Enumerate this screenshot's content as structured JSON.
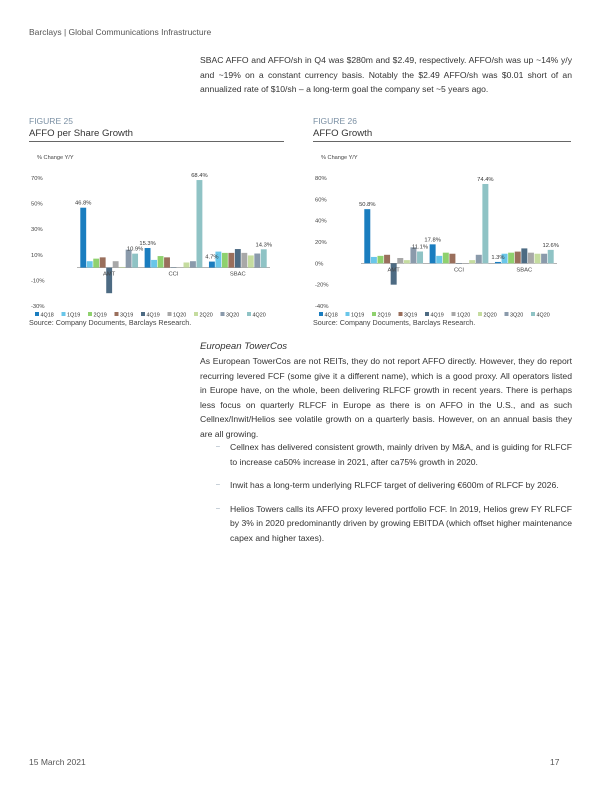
{
  "header": {
    "text": "Barclays | Global Communications Infrastructure"
  },
  "intro": {
    "text": "SBAC AFFO and AFFO/sh in Q4 was $280m and $2.49, respectively. AFFO/sh was up ~14% y/y and ~19% on a constant currency basis. Notably the $2.49 AFFO/sh was $0.01 short of an annualized rate of $10/sh – a long-term goal the company set ~5 years ago."
  },
  "figure25": {
    "number": "FIGURE 25",
    "title": "AFFO per Share Growth",
    "source": "Source: Company Documents, Barclays Research."
  },
  "figure26": {
    "number": "FIGURE 26",
    "title": "AFFO Growth",
    "source": "Source: Company Documents, Barclays Research."
  },
  "chart_data": [
    {
      "type": "bar",
      "title": "",
      "ylabel": "% Change Y/Y",
      "ylim": [
        -30,
        70
      ],
      "yticks": [
        -30,
        -10,
        10,
        30,
        50,
        70
      ],
      "ytick_labels": [
        "-30%",
        "-10%",
        "10%",
        "30%",
        "50%",
        "70%"
      ],
      "categories": [
        "AMT",
        "CCI",
        "SBAC"
      ],
      "series": [
        {
          "name": "4Q18",
          "color": "#1a7dbf",
          "values": [
            46.8,
            15.3,
            4.7
          ]
        },
        {
          "name": "1Q19",
          "color": "#69c6e9",
          "values": [
            5,
            6,
            12.5
          ]
        },
        {
          "name": "2Q19",
          "color": "#8fd16e",
          "values": [
            7,
            9,
            11.5
          ]
        },
        {
          "name": "3Q19",
          "color": "#9a6f5c",
          "values": [
            8,
            8,
            11.5
          ]
        },
        {
          "name": "4Q19",
          "color": "#4d6b83",
          "values": [
            -20,
            0,
            14.5
          ]
        },
        {
          "name": "1Q20",
          "color": "#a8a8a8",
          "values": [
            5,
            0,
            11.5
          ]
        },
        {
          "name": "2Q20",
          "color": "#c5dc9f",
          "values": [
            0.5,
            4,
            9.5
          ]
        },
        {
          "name": "3Q20",
          "color": "#8a9aab",
          "values": [
            14,
            5,
            11
          ]
        },
        {
          "name": "4Q20",
          "color": "#8fc3c5",
          "values": [
            10.9,
            68.4,
            14.3
          ]
        }
      ],
      "data_labels": [
        {
          "category": "AMT",
          "series": "4Q18",
          "text": "46.8%"
        },
        {
          "category": "AMT",
          "series": "4Q20",
          "text": "10.9%"
        },
        {
          "category": "CCI",
          "series": "4Q18",
          "text": "15.3%"
        },
        {
          "category": "CCI",
          "series": "4Q20",
          "text": "68.4%"
        },
        {
          "category": "SBAC",
          "series": "4Q18",
          "text": "4.7%"
        },
        {
          "category": "SBAC",
          "series": "4Q20",
          "text": "14.3%"
        }
      ],
      "legend": "bottom",
      "grid": false
    },
    {
      "type": "bar",
      "title": "",
      "ylabel": "% Change Y/Y",
      "ylim": [
        -40,
        80
      ],
      "yticks": [
        -40,
        -20,
        0,
        20,
        40,
        60,
        80
      ],
      "ytick_labels": [
        "-40%",
        "-20%",
        "0%",
        "20%",
        "40%",
        "60%",
        "80%"
      ],
      "categories": [
        "AMT",
        "CCI",
        "SBAC"
      ],
      "series": [
        {
          "name": "4Q18",
          "color": "#1a7dbf",
          "values": [
            50.8,
            17.8,
            1.3
          ]
        },
        {
          "name": "1Q19",
          "color": "#69c6e9",
          "values": [
            6,
            7,
            9
          ]
        },
        {
          "name": "2Q19",
          "color": "#8fd16e",
          "values": [
            7,
            10,
            10
          ]
        },
        {
          "name": "3Q19",
          "color": "#9a6f5c",
          "values": [
            8,
            9,
            11
          ]
        },
        {
          "name": "4Q19",
          "color": "#4d6b83",
          "values": [
            -20,
            0,
            14
          ]
        },
        {
          "name": "1Q20",
          "color": "#a8a8a8",
          "values": [
            5,
            0,
            10
          ]
        },
        {
          "name": "2Q20",
          "color": "#c5dc9f",
          "values": [
            3,
            3,
            9
          ]
        },
        {
          "name": "3Q20",
          "color": "#8a9aab",
          "values": [
            15,
            8,
            9
          ]
        },
        {
          "name": "4Q20",
          "color": "#8fc3c5",
          "values": [
            11.1,
            74.4,
            12.6
          ]
        }
      ],
      "data_labels": [
        {
          "category": "AMT",
          "series": "4Q18",
          "text": "50.8%"
        },
        {
          "category": "AMT",
          "series": "4Q20",
          "text": "11.1%"
        },
        {
          "category": "CCI",
          "series": "4Q18",
          "text": "17.8%"
        },
        {
          "category": "CCI",
          "series": "4Q20",
          "text": "74.4%"
        },
        {
          "category": "SBAC",
          "series": "4Q18",
          "text": "1.3%"
        },
        {
          "category": "SBAC",
          "series": "4Q20",
          "text": "12.6%"
        }
      ],
      "legend": "bottom",
      "grid": false
    }
  ],
  "section": {
    "title": "European TowerCos",
    "body": "As European TowerCos are not REITs, they do not report AFFO directly. However, they do report recurring levered FCF (some give it a different name), which is a good proxy. All operators listed in Europe have, on the whole, been delivering RLFCF growth in recent years. There is perhaps less focus on quarterly RLFCF in Europe as there is on AFFO in the U.S., and as such Cellnex/Inwit/Helios see volatile growth on a quarterly basis. However, on an annual basis they are all growing.",
    "bullets": [
      "Cellnex has delivered consistent growth, mainly driven by M&A, and is guiding for RLFCF to increase ca50% increase in 2021, after ca75% growth in 2020.",
      "Inwit has a long-term underlying RLFCF target of delivering €600m of RLFCF by 2026.",
      "Helios Towers calls its AFFO proxy levered portfolio FCF. In 2019, Helios grew FY RLFCF by 3% in 2020 predominantly driven by growing EBITDA (which offset higher maintenance capex and higher taxes)."
    ],
    "bullet_marker": "–"
  },
  "footer": {
    "date": "15 March 2021",
    "page": "17"
  }
}
